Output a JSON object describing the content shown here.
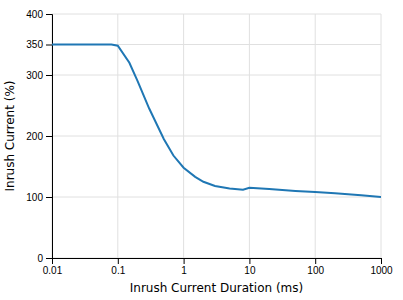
{
  "chart_data": {
    "type": "line",
    "xlabel": "Inrush Current Duration (ms)",
    "ylabel": "Inrush Current (%)",
    "x": [
      0.01,
      0.05,
      0.08,
      0.1,
      0.15,
      0.2,
      0.3,
      0.5,
      0.7,
      1.0,
      1.5,
      2.0,
      3.0,
      5.0,
      8.0,
      10.0,
      20.0,
      50.0,
      100.0,
      200.0,
      500.0,
      1000.0
    ],
    "values": [
      350,
      350,
      350,
      348,
      320,
      290,
      245,
      195,
      168,
      148,
      133,
      125,
      118,
      114,
      112,
      115,
      113,
      110,
      108,
      106,
      103,
      100
    ],
    "xlim": [
      0.01,
      1000
    ],
    "ylim": [
      0,
      400
    ],
    "xticks": [
      0.01,
      0.1,
      1,
      10,
      100,
      1000
    ],
    "yticks": [
      0,
      100,
      200,
      300,
      350,
      400
    ],
    "log": "x",
    "grid": true
  }
}
